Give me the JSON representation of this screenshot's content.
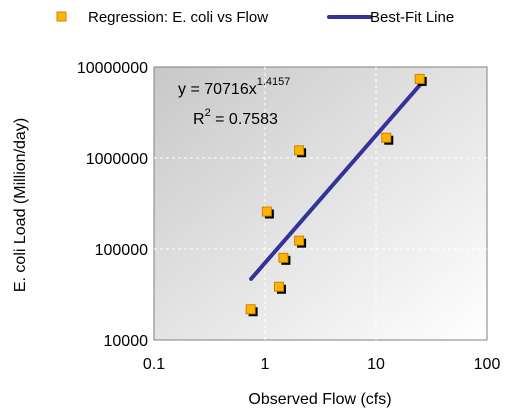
{
  "chart_data": {
    "type": "scatter",
    "title": "",
    "xlabel": "Observed Flow (cfs)",
    "ylabel": "E. coli Load (Million/day)",
    "xscale": "log",
    "yscale": "log",
    "xlim": [
      0.1,
      100
    ],
    "ylim": [
      10000,
      10000000
    ],
    "x_ticks": [
      "0.1",
      "1",
      "10",
      "100"
    ],
    "y_ticks": [
      "10000",
      "100000",
      "1000000",
      "10000000"
    ],
    "grid": true,
    "legend_position": "top",
    "colors": {
      "marker": "#FFB300",
      "marker_edge": "#CC8400",
      "shadow": "#000000",
      "line": "#333399",
      "plot_bg": "#E6E6E6",
      "grid": "#FFFFFF"
    },
    "series": [
      {
        "name": "Regression: E. coli vs Flow",
        "kind": "scatter",
        "points": [
          {
            "x": 0.75,
            "y": 21500
          },
          {
            "x": 1.35,
            "y": 38000
          },
          {
            "x": 1.48,
            "y": 79000
          },
          {
            "x": 2.05,
            "y": 122000
          },
          {
            "x": 1.05,
            "y": 255000
          },
          {
            "x": 2.05,
            "y": 1200000
          },
          {
            "x": 12.5,
            "y": 1650000
          },
          {
            "x": 25.0,
            "y": 7300000
          }
        ]
      },
      {
        "name": "Best-Fit Line",
        "kind": "line",
        "points": [
          {
            "x": 0.75,
            "y": 47000
          },
          {
            "x": 25.0,
            "y": 6400000
          }
        ]
      }
    ],
    "annotations": {
      "equation_base": "y = 70716x",
      "equation_exponent": "1.4157",
      "r2_base": "R",
      "r2_sup": "2",
      "r2_value": " = 0.7583"
    }
  }
}
